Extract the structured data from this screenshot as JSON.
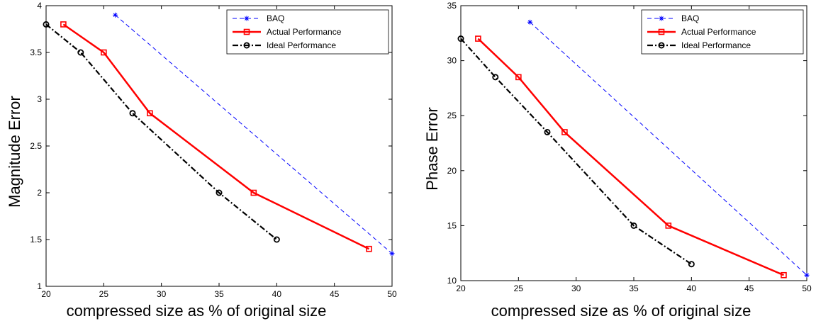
{
  "chart_data": [
    {
      "type": "line",
      "ylabel": "Magnitude Error",
      "xlabel": "compressed size as % of original size",
      "xlim": [
        20,
        50
      ],
      "ylim": [
        1,
        4
      ],
      "xticks": [
        20,
        25,
        30,
        35,
        40,
        45,
        50
      ],
      "yticks": [
        1,
        1.5,
        2,
        2.5,
        3,
        3.5,
        4
      ],
      "grid": false,
      "legend_position": "top-right",
      "series": [
        {
          "name": "BAQ",
          "style": "dashed",
          "marker": "asterisk",
          "color": "#0000ff",
          "x": [
            26,
            50
          ],
          "y": [
            3.9,
            1.35
          ]
        },
        {
          "name": "Actual Performance",
          "style": "solid",
          "marker": "square",
          "color": "#ff0000",
          "x": [
            21.5,
            25,
            29,
            38,
            48
          ],
          "y": [
            3.8,
            3.5,
            2.85,
            2.0,
            1.4
          ]
        },
        {
          "name": "Ideal Performance",
          "style": "dashdot",
          "marker": "circle",
          "color": "#000000",
          "x": [
            20,
            23,
            27.5,
            35,
            40
          ],
          "y": [
            3.8,
            3.5,
            2.85,
            2.0,
            1.5
          ]
        }
      ]
    },
    {
      "type": "line",
      "ylabel": "Phase Error",
      "xlabel": "compressed size as % of original size",
      "xlim": [
        20,
        50
      ],
      "ylim": [
        10,
        35
      ],
      "xticks": [
        20,
        25,
        30,
        35,
        40,
        45,
        50
      ],
      "yticks": [
        10,
        15,
        20,
        25,
        30,
        35
      ],
      "grid": false,
      "legend_position": "top-right",
      "series": [
        {
          "name": "BAQ",
          "style": "dashed",
          "marker": "asterisk",
          "color": "#0000ff",
          "x": [
            26,
            50
          ],
          "y": [
            33.5,
            10.5
          ]
        },
        {
          "name": "Actual Performance",
          "style": "solid",
          "marker": "square",
          "color": "#ff0000",
          "x": [
            21.5,
            25,
            29,
            38,
            48
          ],
          "y": [
            32,
            28.5,
            23.5,
            15,
            10.5
          ]
        },
        {
          "name": "Ideal Performance",
          "style": "dashdot",
          "marker": "circle",
          "color": "#000000",
          "x": [
            20,
            23,
            27.5,
            35,
            40
          ],
          "y": [
            32,
            28.5,
            23.5,
            15,
            11.5
          ]
        }
      ]
    }
  ]
}
